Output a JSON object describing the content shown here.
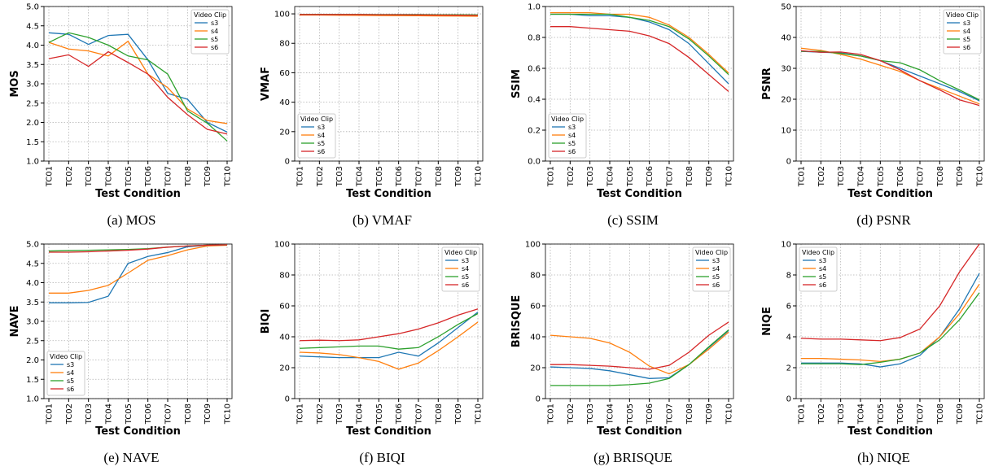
{
  "chart_data": [
    {
      "type": "line",
      "caption": "(a) MOS",
      "ylabel": "MOS",
      "xlabel": "Test Condition",
      "legend_title": "Video Clip",
      "legend": "upper right",
      "grid": true,
      "categories": [
        "TC01",
        "TC02",
        "TC03",
        "TC04",
        "TC05",
        "TC06",
        "TC07",
        "TC08",
        "TC09",
        "TC10"
      ],
      "ylim": [
        1,
        5
      ],
      "yticks": [
        {
          "value": 1,
          "label": "1.0"
        },
        1.5,
        {
          "value": 2,
          "label": "2.0"
        },
        2.5,
        {
          "value": 3,
          "label": "3.0"
        },
        3.5,
        {
          "value": 4,
          "label": "4.0"
        },
        4.5,
        {
          "value": 5,
          "label": "5.0"
        }
      ],
      "series": [
        {
          "name": "s3",
          "color": "#1f77b4",
          "values": [
            4.32,
            4.28,
            4.02,
            4.25,
            4.28,
            3.62,
            2.75,
            2.6,
            2.0,
            1.75
          ]
        },
        {
          "name": "s4",
          "color": "#ff7f0e",
          "values": [
            4.07,
            3.9,
            3.85,
            3.72,
            4.1,
            3.25,
            2.9,
            2.35,
            2.05,
            1.97
          ]
        },
        {
          "name": "s5",
          "color": "#2ca02c",
          "values": [
            4.07,
            4.32,
            4.2,
            4.0,
            3.72,
            3.62,
            3.25,
            2.3,
            1.98,
            1.52
          ]
        },
        {
          "name": "s6",
          "color": "#d62728",
          "values": [
            3.65,
            3.75,
            3.45,
            3.83,
            3.55,
            3.25,
            2.65,
            2.2,
            1.82,
            1.7
          ]
        }
      ]
    },
    {
      "type": "line",
      "caption": "(b) VMAF",
      "ylabel": "VMAF",
      "xlabel": "Test Condition",
      "legend_title": "Video Clip",
      "legend": "lower left",
      "grid": true,
      "categories": [
        "TC01",
        "TC02",
        "TC03",
        "TC04",
        "TC05",
        "TC06",
        "TC07",
        "TC08",
        "TC09",
        "TC10"
      ],
      "ylim": [
        0,
        105
      ],
      "yticks": [
        0,
        20,
        40,
        60,
        80,
        100
      ],
      "series": [
        {
          "name": "s3",
          "color": "#1f77b4",
          "values": [
            99.5,
            99.5,
            99.5,
            99.4,
            99.4,
            99.3,
            99.3,
            99.2,
            99.1,
            99.0
          ]
        },
        {
          "name": "s4",
          "color": "#ff7f0e",
          "values": [
            99.2,
            99.2,
            99.1,
            99.0,
            98.9,
            98.8,
            98.7,
            98.6,
            98.5,
            98.4
          ]
        },
        {
          "name": "s5",
          "color": "#2ca02c",
          "values": [
            99.6,
            99.6,
            99.6,
            99.6,
            99.5,
            99.5,
            99.5,
            99.4,
            99.4,
            99.3
          ]
        },
        {
          "name": "s6",
          "color": "#d62728",
          "values": [
            99.5,
            99.5,
            99.5,
            99.5,
            99.4,
            99.4,
            99.3,
            99.2,
            99.1,
            99.0
          ]
        }
      ]
    },
    {
      "type": "line",
      "caption": "(c) SSIM",
      "ylabel": "SSIM",
      "xlabel": "Test Condition",
      "legend_title": "Video Clip",
      "legend": "lower left",
      "grid": true,
      "categories": [
        "TC01",
        "TC02",
        "TC03",
        "TC04",
        "TC05",
        "TC06",
        "TC07",
        "TC08",
        "TC09",
        "TC10"
      ],
      "ylim": [
        0,
        1
      ],
      "yticks": [
        {
          "value": 0,
          "label": "0.0"
        },
        0.2,
        0.4,
        0.6,
        0.8,
        {
          "value": 1,
          "label": "1.0"
        }
      ],
      "series": [
        {
          "name": "s3",
          "color": "#1f77b4",
          "values": [
            0.95,
            0.95,
            0.94,
            0.94,
            0.93,
            0.9,
            0.85,
            0.76,
            0.63,
            0.5
          ]
        },
        {
          "name": "s4",
          "color": "#ff7f0e",
          "values": [
            0.96,
            0.96,
            0.96,
            0.95,
            0.95,
            0.93,
            0.88,
            0.8,
            0.69,
            0.57
          ]
        },
        {
          "name": "s5",
          "color": "#2ca02c",
          "values": [
            0.95,
            0.95,
            0.95,
            0.95,
            0.93,
            0.91,
            0.87,
            0.79,
            0.68,
            0.56
          ]
        },
        {
          "name": "s6",
          "color": "#d62728",
          "values": [
            0.87,
            0.87,
            0.86,
            0.85,
            0.84,
            0.81,
            0.76,
            0.67,
            0.56,
            0.45
          ]
        }
      ]
    },
    {
      "type": "line",
      "caption": "(d) PSNR",
      "ylabel": "PSNR",
      "xlabel": "Test Condition",
      "legend_title": "Video Clip",
      "legend": "upper right",
      "grid": true,
      "categories": [
        "TC01",
        "TC02",
        "TC03",
        "TC04",
        "TC05",
        "TC06",
        "TC07",
        "TC08",
        "TC09",
        "TC10"
      ],
      "ylim": [
        0,
        50
      ],
      "yticks": [
        0,
        10,
        20,
        30,
        40,
        50
      ],
      "series": [
        {
          "name": "s3",
          "color": "#1f77b4",
          "values": [
            35.5,
            35.2,
            35,
            34,
            32.5,
            30,
            27.5,
            25,
            22.5,
            19.5
          ]
        },
        {
          "name": "s4",
          "color": "#ff7f0e",
          "values": [
            36.5,
            35.8,
            34.5,
            33,
            31,
            29,
            26,
            23.5,
            21,
            18.5
          ]
        },
        {
          "name": "s5",
          "color": "#2ca02c",
          "values": [
            35.5,
            35.5,
            34.8,
            34,
            32.5,
            31.8,
            29.5,
            26,
            23,
            19.8
          ]
        },
        {
          "name": "s6",
          "color": "#d62728",
          "values": [
            35.7,
            35.2,
            35.3,
            34.5,
            32.5,
            29.5,
            26,
            23,
            19.8,
            18
          ]
        }
      ]
    },
    {
      "type": "line",
      "caption": "(e) NAVE",
      "ylabel": "NAVE",
      "xlabel": "Test Condition",
      "legend_title": "Video Clip",
      "legend": "lower left",
      "grid": true,
      "categories": [
        "TC01",
        "TC02",
        "TC03",
        "TC04",
        "TC05",
        "TC06",
        "TC07",
        "TC08",
        "TC09",
        "TC10"
      ],
      "ylim": [
        1,
        5
      ],
      "yticks": [
        {
          "value": 1,
          "label": "1.0"
        },
        1.5,
        {
          "value": 2,
          "label": "2.0"
        },
        2.5,
        {
          "value": 3,
          "label": "3.0"
        },
        3.5,
        {
          "value": 4,
          "label": "4.0"
        },
        4.5,
        {
          "value": 5,
          "label": "5.0"
        }
      ],
      "series": [
        {
          "name": "s3",
          "color": "#1f77b4",
          "values": [
            3.48,
            3.48,
            3.49,
            3.65,
            4.5,
            4.68,
            4.78,
            4.93,
            4.97,
            4.98
          ]
        },
        {
          "name": "s4",
          "color": "#ff7f0e",
          "values": [
            3.73,
            3.73,
            3.8,
            3.93,
            4.25,
            4.58,
            4.7,
            4.85,
            4.95,
            4.97
          ]
        },
        {
          "name": "s5",
          "color": "#2ca02c",
          "values": [
            4.82,
            4.83,
            4.84,
            4.85,
            4.86,
            4.88,
            4.92,
            4.95,
            4.97,
            4.98
          ]
        },
        {
          "name": "s6",
          "color": "#d62728",
          "values": [
            4.79,
            4.79,
            4.8,
            4.82,
            4.84,
            4.87,
            4.92,
            4.95,
            4.97,
            4.98
          ]
        }
      ]
    },
    {
      "type": "line",
      "caption": "(f) BIQI",
      "ylabel": "BIQI",
      "xlabel": "Test Condition",
      "legend_title": "Video Clip",
      "legend": "upper right",
      "grid": true,
      "categories": [
        "TC01",
        "TC02",
        "TC03",
        "TC04",
        "TC05",
        "TC06",
        "TC07",
        "TC08",
        "TC09",
        "TC10"
      ],
      "ylim": [
        0,
        100
      ],
      "yticks": [
        0,
        20,
        40,
        60,
        80,
        100
      ],
      "series": [
        {
          "name": "s3",
          "color": "#1f77b4",
          "values": [
            27.5,
            27,
            26.5,
            26.5,
            26.5,
            30,
            27.5,
            36,
            46,
            56
          ]
        },
        {
          "name": "s4",
          "color": "#ff7f0e",
          "values": [
            30,
            29.5,
            28.5,
            26.5,
            24,
            19,
            23,
            31,
            40,
            49.5
          ]
        },
        {
          "name": "s5",
          "color": "#2ca02c",
          "values": [
            32.5,
            33,
            33.5,
            34,
            34,
            32,
            33,
            40,
            48,
            55
          ]
        },
        {
          "name": "s6",
          "color": "#d62728",
          "values": [
            37.5,
            37.8,
            37.5,
            38,
            40,
            42,
            45,
            49,
            54,
            58
          ]
        }
      ]
    },
    {
      "type": "line",
      "caption": "(g) BRISQUE",
      "ylabel": "BRISQUE",
      "xlabel": "Test Condition",
      "legend_title": "Video Clip",
      "legend": "upper right",
      "grid": true,
      "categories": [
        "TC01",
        "TC02",
        "TC03",
        "TC04",
        "TC05",
        "TC06",
        "TC07",
        "TC08",
        "TC09",
        "TC10"
      ],
      "ylim": [
        0,
        100
      ],
      "yticks": [
        0,
        20,
        40,
        60,
        80,
        100
      ],
      "series": [
        {
          "name": "s3",
          "color": "#1f77b4",
          "values": [
            20.5,
            20,
            19.5,
            18,
            15.5,
            13,
            13.5,
            22,
            33,
            44
          ]
        },
        {
          "name": "s4",
          "color": "#ff7f0e",
          "values": [
            41,
            40,
            39,
            36,
            30,
            21,
            16,
            22,
            32,
            43
          ]
        },
        {
          "name": "s5",
          "color": "#2ca02c",
          "values": [
            8.5,
            8.5,
            8.5,
            8.5,
            9,
            10,
            13,
            22,
            33.5,
            44.5
          ]
        },
        {
          "name": "s6",
          "color": "#d62728",
          "values": [
            22,
            22,
            21.5,
            21,
            20,
            19,
            21.5,
            30,
            41,
            49.5
          ]
        }
      ]
    },
    {
      "type": "line",
      "caption": "(h) NIQE",
      "ylabel": "NIQE",
      "xlabel": "Test Condition",
      "legend_title": "Video Clip",
      "legend": "upper left",
      "grid": true,
      "categories": [
        "TC01",
        "TC02",
        "TC03",
        "TC04",
        "TC05",
        "TC06",
        "TC07",
        "TC08",
        "TC09",
        "TC10"
      ],
      "ylim": [
        0,
        10
      ],
      "yticks": [
        0,
        2,
        4,
        6,
        8,
        10
      ],
      "series": [
        {
          "name": "s3",
          "color": "#1f77b4",
          "values": [
            2.3,
            2.3,
            2.3,
            2.25,
            2.05,
            2.25,
            2.8,
            4.0,
            5.8,
            8.1
          ]
        },
        {
          "name": "s4",
          "color": "#ff7f0e",
          "values": [
            2.6,
            2.6,
            2.55,
            2.5,
            2.4,
            2.55,
            2.95,
            4.0,
            5.5,
            7.4
          ]
        },
        {
          "name": "s5",
          "color": "#2ca02c",
          "values": [
            2.25,
            2.25,
            2.25,
            2.2,
            2.35,
            2.55,
            2.95,
            3.8,
            5.1,
            6.85
          ]
        },
        {
          "name": "s6",
          "color": "#d62728",
          "values": [
            3.9,
            3.85,
            3.85,
            3.8,
            3.75,
            3.95,
            4.5,
            6.0,
            8.2,
            10
          ]
        }
      ]
    }
  ]
}
